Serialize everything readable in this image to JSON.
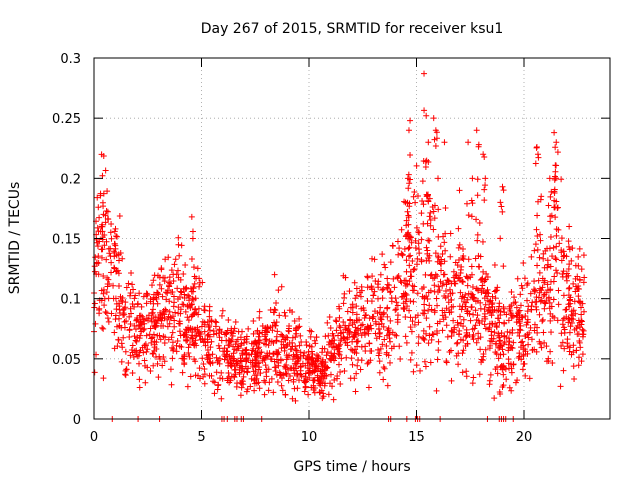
{
  "chart_data": {
    "type": "scatter",
    "title": "Day 267 of 2015, SRMTID for receiver ksu1",
    "xlabel": "GPS time / hours",
    "ylabel": "SRMTID / TECUs",
    "xlim": [
      0,
      24
    ],
    "ylim": [
      0,
      0.3
    ],
    "x_ticks": [
      0,
      5,
      10,
      15,
      20
    ],
    "y_ticks": [
      0,
      0.05,
      0.1,
      0.15,
      0.2,
      0.25,
      0.3
    ],
    "x_tick_labels": [
      "0",
      "5",
      "10",
      "15",
      "20"
    ],
    "y_tick_labels": [
      "0",
      "0.05",
      "0.1",
      "0.15",
      "0.2",
      "0.25",
      "0.3"
    ],
    "grid": true,
    "marker": "plus",
    "series_color": "#ff0000",
    "trend": [
      {
        "x": 0.0,
        "y": 0.09
      },
      {
        "x": 0.3,
        "y": 0.14
      },
      {
        "x": 0.8,
        "y": 0.12
      },
      {
        "x": 1.5,
        "y": 0.08
      },
      {
        "x": 2.5,
        "y": 0.07
      },
      {
        "x": 3.5,
        "y": 0.09
      },
      {
        "x": 4.5,
        "y": 0.08
      },
      {
        "x": 5.5,
        "y": 0.065
      },
      {
        "x": 6.5,
        "y": 0.05
      },
      {
        "x": 7.5,
        "y": 0.05
      },
      {
        "x": 8.5,
        "y": 0.065
      },
      {
        "x": 9.5,
        "y": 0.05
      },
      {
        "x": 10.5,
        "y": 0.04
      },
      {
        "x": 11.5,
        "y": 0.07
      },
      {
        "x": 12.5,
        "y": 0.075
      },
      {
        "x": 13.5,
        "y": 0.08
      },
      {
        "x": 14.5,
        "y": 0.12
      },
      {
        "x": 15.3,
        "y": 0.13
      },
      {
        "x": 16.0,
        "y": 0.11
      },
      {
        "x": 17.0,
        "y": 0.09
      },
      {
        "x": 18.0,
        "y": 0.1
      },
      {
        "x": 19.0,
        "y": 0.06
      },
      {
        "x": 20.0,
        "y": 0.08
      },
      {
        "x": 21.0,
        "y": 0.1
      },
      {
        "x": 21.5,
        "y": 0.14
      },
      {
        "x": 22.0,
        "y": 0.09
      },
      {
        "x": 22.7,
        "y": 0.09
      }
    ],
    "peaks": [
      {
        "x": 0.15,
        "y": 0.184
      },
      {
        "x": 0.2,
        "y": 0.176
      },
      {
        "x": 0.35,
        "y": 0.16
      },
      {
        "x": 1.0,
        "y": 0.158
      },
      {
        "x": 4.55,
        "y": 0.168
      },
      {
        "x": 4.6,
        "y": 0.15
      },
      {
        "x": 8.4,
        "y": 0.12
      },
      {
        "x": 14.7,
        "y": 0.248
      },
      {
        "x": 14.65,
        "y": 0.24
      },
      {
        "x": 14.6,
        "y": 0.2
      },
      {
        "x": 15.35,
        "y": 0.287
      },
      {
        "x": 15.45,
        "y": 0.252
      },
      {
        "x": 15.55,
        "y": 0.23
      },
      {
        "x": 15.8,
        "y": 0.25
      },
      {
        "x": 15.9,
        "y": 0.24
      },
      {
        "x": 16.0,
        "y": 0.2
      },
      {
        "x": 16.3,
        "y": 0.23
      },
      {
        "x": 17.4,
        "y": 0.23
      },
      {
        "x": 17.6,
        "y": 0.2
      },
      {
        "x": 17.0,
        "y": 0.19
      },
      {
        "x": 17.8,
        "y": 0.24
      },
      {
        "x": 17.9,
        "y": 0.228
      },
      {
        "x": 18.2,
        "y": 0.2
      },
      {
        "x": 18.1,
        "y": 0.22
      },
      {
        "x": 19.0,
        "y": 0.193
      },
      {
        "x": 20.6,
        "y": 0.226
      },
      {
        "x": 20.65,
        "y": 0.22
      },
      {
        "x": 21.4,
        "y": 0.238
      },
      {
        "x": 21.5,
        "y": 0.23
      },
      {
        "x": 21.45,
        "y": 0.2
      },
      {
        "x": 21.2,
        "y": 0.2
      },
      {
        "x": 20.8,
        "y": 0.185
      },
      {
        "x": 22.1,
        "y": 0.16
      },
      {
        "x": 18.9,
        "y": 0.18
      }
    ],
    "zero_points": [
      {
        "x": 0.85,
        "y": 0
      },
      {
        "x": 2.05,
        "y": 0
      },
      {
        "x": 3.05,
        "y": 0
      },
      {
        "x": 5.95,
        "y": 0
      },
      {
        "x": 6.05,
        "y": 0
      },
      {
        "x": 6.2,
        "y": 0
      },
      {
        "x": 6.55,
        "y": 0
      },
      {
        "x": 6.65,
        "y": 0
      },
      {
        "x": 6.85,
        "y": 0
      },
      {
        "x": 6.95,
        "y": 0
      },
      {
        "x": 7.8,
        "y": 0
      },
      {
        "x": 13.7,
        "y": 0
      },
      {
        "x": 13.8,
        "y": 0
      },
      {
        "x": 14.55,
        "y": 0
      },
      {
        "x": 14.95,
        "y": 0
      },
      {
        "x": 15.05,
        "y": 0
      },
      {
        "x": 15.15,
        "y": 0
      },
      {
        "x": 16.1,
        "y": 0
      },
      {
        "x": 18.3,
        "y": 0
      },
      {
        "x": 18.85,
        "y": 0
      },
      {
        "x": 18.95,
        "y": 0
      },
      {
        "x": 19.05,
        "y": 0
      },
      {
        "x": 19.15,
        "y": 0
      },
      {
        "x": 19.5,
        "y": 0
      }
    ],
    "samples_per_hour": 95,
    "x_end": 22.8,
    "series_name": "SRMTID"
  }
}
